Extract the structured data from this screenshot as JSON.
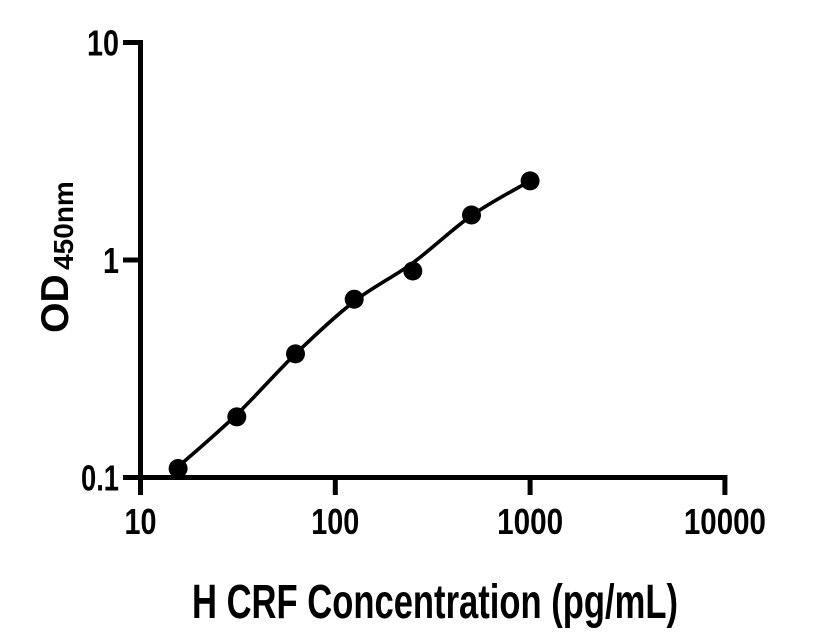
{
  "figure": {
    "background": "#ffffff"
  },
  "chart_data": {
    "type": "scatter",
    "title": "",
    "xlabel": "H CRF Concentration (pg/mL)",
    "ylabel_main": "OD",
    "ylabel_sub": "450nm",
    "x_scale": "log10",
    "y_scale": "log10",
    "xlim": [
      10,
      10000
    ],
    "ylim": [
      0.1,
      10
    ],
    "x_ticks": [
      10,
      100,
      1000,
      10000
    ],
    "x_tick_labels": [
      "10",
      "100",
      "1000",
      "10000"
    ],
    "y_ticks": [
      10,
      1,
      0.1
    ],
    "y_tick_labels": [
      "10",
      "1",
      "0.1"
    ],
    "grid": false,
    "legend": false,
    "axis_color": "#000000",
    "text_color": "#000000",
    "series": [
      {
        "name": "standard-curve-points",
        "marker": "filled-circle",
        "color": "#000000",
        "x": [
          15.6,
          31.2,
          62.5,
          125,
          250,
          500,
          1000
        ],
        "y": [
          0.11,
          0.19,
          0.37,
          0.66,
          0.89,
          1.61,
          2.31
        ]
      }
    ],
    "fit_line": {
      "name": "four-parameter-logistic-fit",
      "color": "#000000",
      "x": [
        15.6,
        31.2,
        62.5,
        125,
        250,
        500,
        1000
      ],
      "y": [
        0.112,
        0.195,
        0.37,
        0.645,
        0.97,
        1.6,
        2.31
      ]
    }
  }
}
